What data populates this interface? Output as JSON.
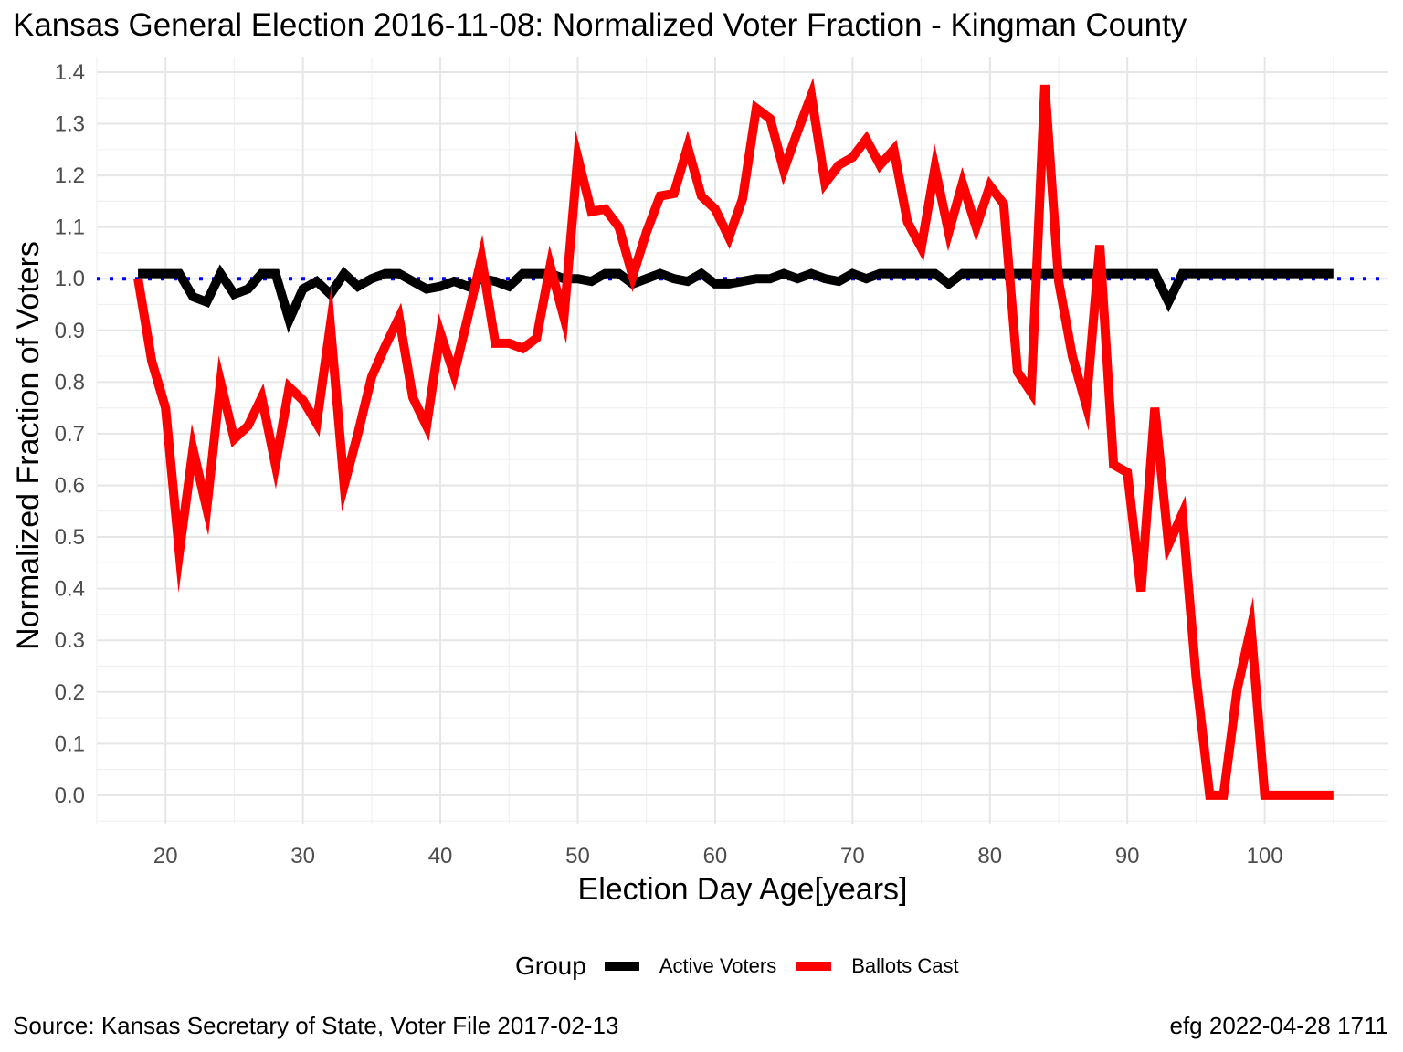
{
  "chart_data": {
    "type": "line",
    "title": "Kansas General Election 2016-11-08:  Normalized Voter Fraction - Kingman County",
    "xlabel": "Election Day Age[years]",
    "ylabel": "Normalized Fraction of Voters",
    "xlim": [
      15,
      109
    ],
    "ylim": [
      -0.055,
      1.43
    ],
    "x_ticks": [
      20,
      30,
      40,
      50,
      60,
      70,
      80,
      90,
      100
    ],
    "y_ticks": [
      0.0,
      0.1,
      0.2,
      0.3,
      0.4,
      0.5,
      0.6,
      0.7,
      0.8,
      0.9,
      1.0,
      1.1,
      1.2,
      1.3,
      1.4
    ],
    "y_tick_labels": [
      "0.0",
      "0.1",
      "0.2",
      "0.3",
      "0.4",
      "0.5",
      "0.6",
      "0.7",
      "0.8",
      "0.9",
      "1.0",
      "1.1",
      "1.2",
      "1.3",
      "1.4"
    ],
    "grid": true,
    "legend": {
      "position": "bottom",
      "title": "Group",
      "entries": [
        {
          "label": "Active Voters",
          "color": "#000000"
        },
        {
          "label": "Ballots Cast",
          "color": "#ff0000"
        }
      ]
    },
    "reference_line": {
      "y": 1.0,
      "color": "#0000ff",
      "style": "dotted"
    },
    "x": [
      18,
      19,
      20,
      21,
      22,
      23,
      24,
      25,
      26,
      27,
      28,
      29,
      30,
      31,
      32,
      33,
      34,
      35,
      36,
      37,
      38,
      39,
      40,
      41,
      42,
      43,
      44,
      45,
      46,
      47,
      48,
      49,
      50,
      51,
      52,
      53,
      54,
      55,
      56,
      57,
      58,
      59,
      60,
      61,
      62,
      63,
      64,
      65,
      66,
      67,
      68,
      69,
      70,
      71,
      72,
      73,
      74,
      75,
      76,
      77,
      78,
      79,
      80,
      81,
      82,
      83,
      84,
      85,
      86,
      87,
      88,
      89,
      90,
      91,
      92,
      93,
      94,
      95,
      96,
      97,
      98,
      99,
      100,
      101,
      102,
      103,
      104,
      105
    ],
    "series": [
      {
        "name": "Active Voters",
        "color": "#000000",
        "values": [
          1.01,
          1.01,
          1.01,
          1.01,
          0.965,
          0.955,
          1.01,
          0.97,
          0.98,
          1.01,
          1.01,
          0.92,
          0.98,
          0.995,
          0.97,
          1.01,
          0.985,
          1.0,
          1.01,
          1.01,
          0.995,
          0.98,
          0.985,
          0.995,
          0.985,
          1.0,
          0.995,
          0.985,
          1.01,
          1.01,
          1.01,
          1.0,
          1.0,
          0.995,
          1.01,
          1.01,
          0.99,
          1.0,
          1.01,
          1.0,
          0.995,
          1.01,
          0.99,
          0.99,
          0.995,
          1.0,
          1.0,
          1.01,
          1.0,
          1.01,
          1.0,
          0.995,
          1.01,
          1.0,
          1.01,
          1.01,
          1.01,
          1.01,
          1.01,
          0.99,
          1.01,
          1.01,
          1.01,
          1.01,
          1.01,
          1.01,
          1.01,
          1.01,
          1.01,
          1.01,
          1.01,
          1.01,
          1.01,
          1.01,
          1.01,
          0.955,
          1.01,
          1.01,
          1.01,
          1.01,
          1.01,
          1.01,
          1.01,
          1.01,
          1.01,
          1.01,
          1.01,
          1.01
        ]
      },
      {
        "name": "Ballots Cast",
        "color": "#ff0000",
        "values": [
          1.0,
          0.84,
          0.75,
          0.47,
          0.67,
          0.555,
          0.8,
          0.69,
          0.715,
          0.77,
          0.64,
          0.79,
          0.765,
          0.72,
          0.91,
          0.6,
          0.7,
          0.81,
          0.87,
          0.925,
          0.77,
          0.715,
          0.895,
          0.815,
          0.925,
          1.04,
          0.875,
          0.875,
          0.865,
          0.885,
          1.025,
          0.925,
          1.235,
          1.13,
          1.135,
          1.1,
          1.005,
          1.09,
          1.16,
          1.165,
          1.255,
          1.16,
          1.135,
          1.08,
          1.155,
          1.33,
          1.31,
          1.21,
          1.285,
          1.355,
          1.185,
          1.22,
          1.235,
          1.27,
          1.22,
          1.25,
          1.11,
          1.06,
          1.215,
          1.09,
          1.185,
          1.1,
          1.18,
          1.145,
          0.82,
          0.78,
          1.375,
          0.995,
          0.85,
          0.755,
          1.065,
          0.64,
          0.625,
          0.395,
          0.75,
          0.485,
          0.545,
          0.23,
          0.0,
          0.0,
          0.205,
          0.325,
          0.0,
          0.0,
          0.0,
          0.0,
          0.0,
          0.0
        ]
      }
    ]
  },
  "caption": {
    "source": "Source:  Kansas Secretary of State, Voter File  2017-02-13",
    "credit": "efg 2022-04-28 1711"
  }
}
